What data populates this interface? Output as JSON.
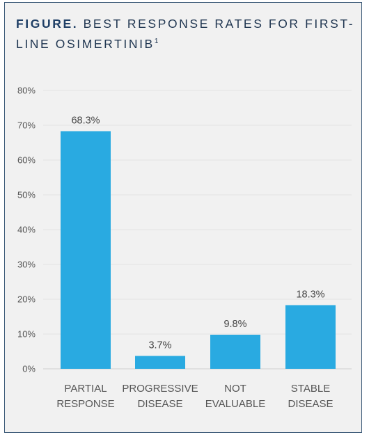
{
  "figure": {
    "title_lead": "FIGURE.",
    "title_text": "BEST RESPONSE RATES FOR FIRST-LINE OSIMERTINIB",
    "title_ref": "1"
  },
  "chart_data": {
    "type": "bar",
    "categories": [
      [
        "PARTIAL",
        "RESPONSE"
      ],
      [
        "PROGRESSIVE",
        "DISEASE"
      ],
      [
        "NOT",
        "EVALUABLE"
      ],
      [
        "STABLE",
        "DISEASE"
      ]
    ],
    "values": [
      68.3,
      3.7,
      9.8,
      18.3
    ],
    "data_labels": [
      "68.3%",
      "3.7%",
      "9.8%",
      "18.3%"
    ],
    "yticks": [
      "0%",
      "10%",
      "20%",
      "30%",
      "40%",
      "50%",
      "60%",
      "70%",
      "80%"
    ],
    "ylim": [
      0,
      80
    ],
    "bar_color": "#29aae1",
    "grid": true,
    "legend": "none"
  }
}
